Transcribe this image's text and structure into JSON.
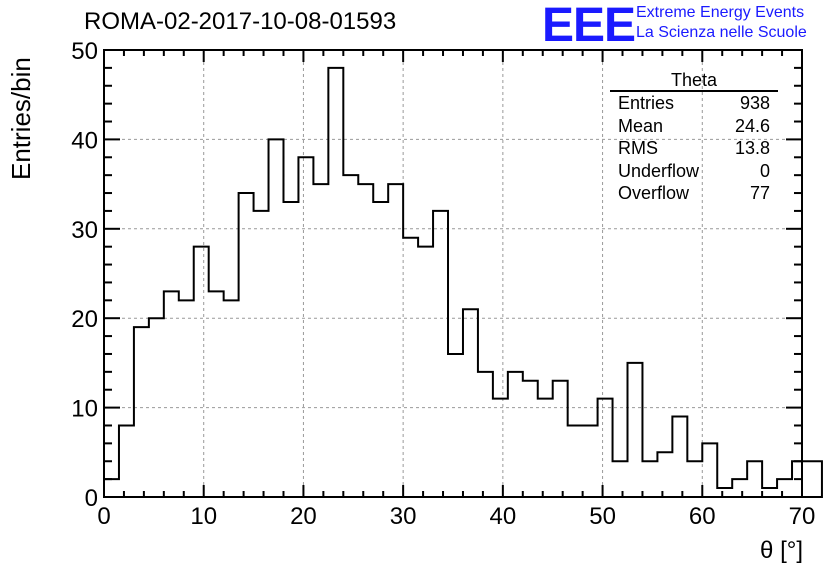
{
  "title": "ROMA-02-2017-10-08-01593",
  "logo": {
    "mark": "EEE",
    "line1": "Extreme Energy Events",
    "line2": "La Scienza nelle Scuole",
    "color": "#1a1aff"
  },
  "stats_box": {
    "name": "Theta",
    "rows": [
      {
        "label": "Entries",
        "value": "938"
      },
      {
        "label": "Mean",
        "value": "24.6"
      },
      {
        "label": "RMS",
        "value": "13.8"
      },
      {
        "label": "Underflow",
        "value": "0"
      },
      {
        "label": "Overflow",
        "value": "77"
      }
    ]
  },
  "chart_data": {
    "type": "bar",
    "style": "step-histogram",
    "xlabel": "θ [°]",
    "ylabel": "Entries/bin",
    "xlim": [
      0,
      70
    ],
    "ylim": [
      0,
      50
    ],
    "bin_width": 1.5,
    "bin_edges_start": 0,
    "values": [
      2,
      8,
      19,
      20,
      23,
      22,
      28,
      23,
      22,
      34,
      32,
      40,
      33,
      38,
      35,
      48,
      36,
      35,
      33,
      35,
      29,
      28,
      32,
      16,
      21,
      14,
      11,
      14,
      13,
      11,
      13,
      8,
      8,
      11,
      4,
      15,
      4,
      5,
      9,
      4,
      6,
      1,
      2,
      4,
      1,
      2,
      4,
      4,
      0
    ],
    "x_ticks": [
      "0",
      "10",
      "20",
      "30",
      "40",
      "50",
      "60",
      "70"
    ],
    "y_ticks": [
      "0",
      "10",
      "20",
      "30",
      "40",
      "50"
    ],
    "grid": true,
    "line_color": "#000000",
    "grid_color": "#999999"
  }
}
